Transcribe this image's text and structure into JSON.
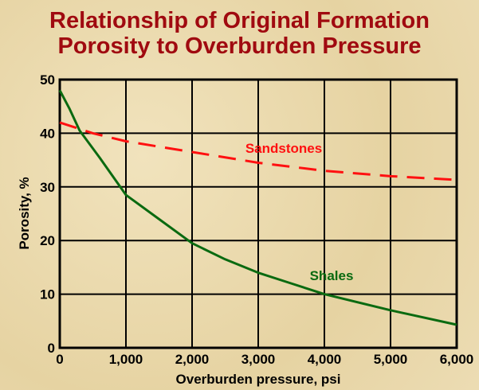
{
  "chart_data": {
    "type": "line",
    "title_lines": [
      "Relationship of Original Formation",
      "Porosity to Overburden Pressure"
    ],
    "xlabel": "Overburden pressure, psi",
    "ylabel": "Porosity, %",
    "xlim": [
      0,
      6000
    ],
    "ylim": [
      0,
      50
    ],
    "xticks": [
      "0",
      "1,000",
      "2,000",
      "3,000",
      "4,000",
      "5,000",
      "6,000"
    ],
    "yticks": [
      "0",
      "10",
      "20",
      "30",
      "40",
      "50"
    ],
    "grid": true,
    "series": [
      {
        "name": "Sandstones",
        "color": "#ff1010",
        "style": "dashed",
        "x": [
          0,
          500,
          1000,
          2000,
          3000,
          4000,
          5000,
          6000
        ],
        "y": [
          42,
          40,
          38.5,
          36.5,
          34.5,
          33,
          32,
          31.3
        ]
      },
      {
        "name": "Shales",
        "color": "#0a6a10",
        "style": "solid",
        "x": [
          0,
          150,
          300,
          600,
          1000,
          1500,
          2000,
          2500,
          3000,
          3500,
          4000,
          5000,
          6000
        ],
        "y": [
          48,
          44.5,
          40.5,
          35.5,
          28.5,
          24,
          19.5,
          16.5,
          14,
          12,
          10,
          7,
          4.3
        ]
      }
    ]
  }
}
